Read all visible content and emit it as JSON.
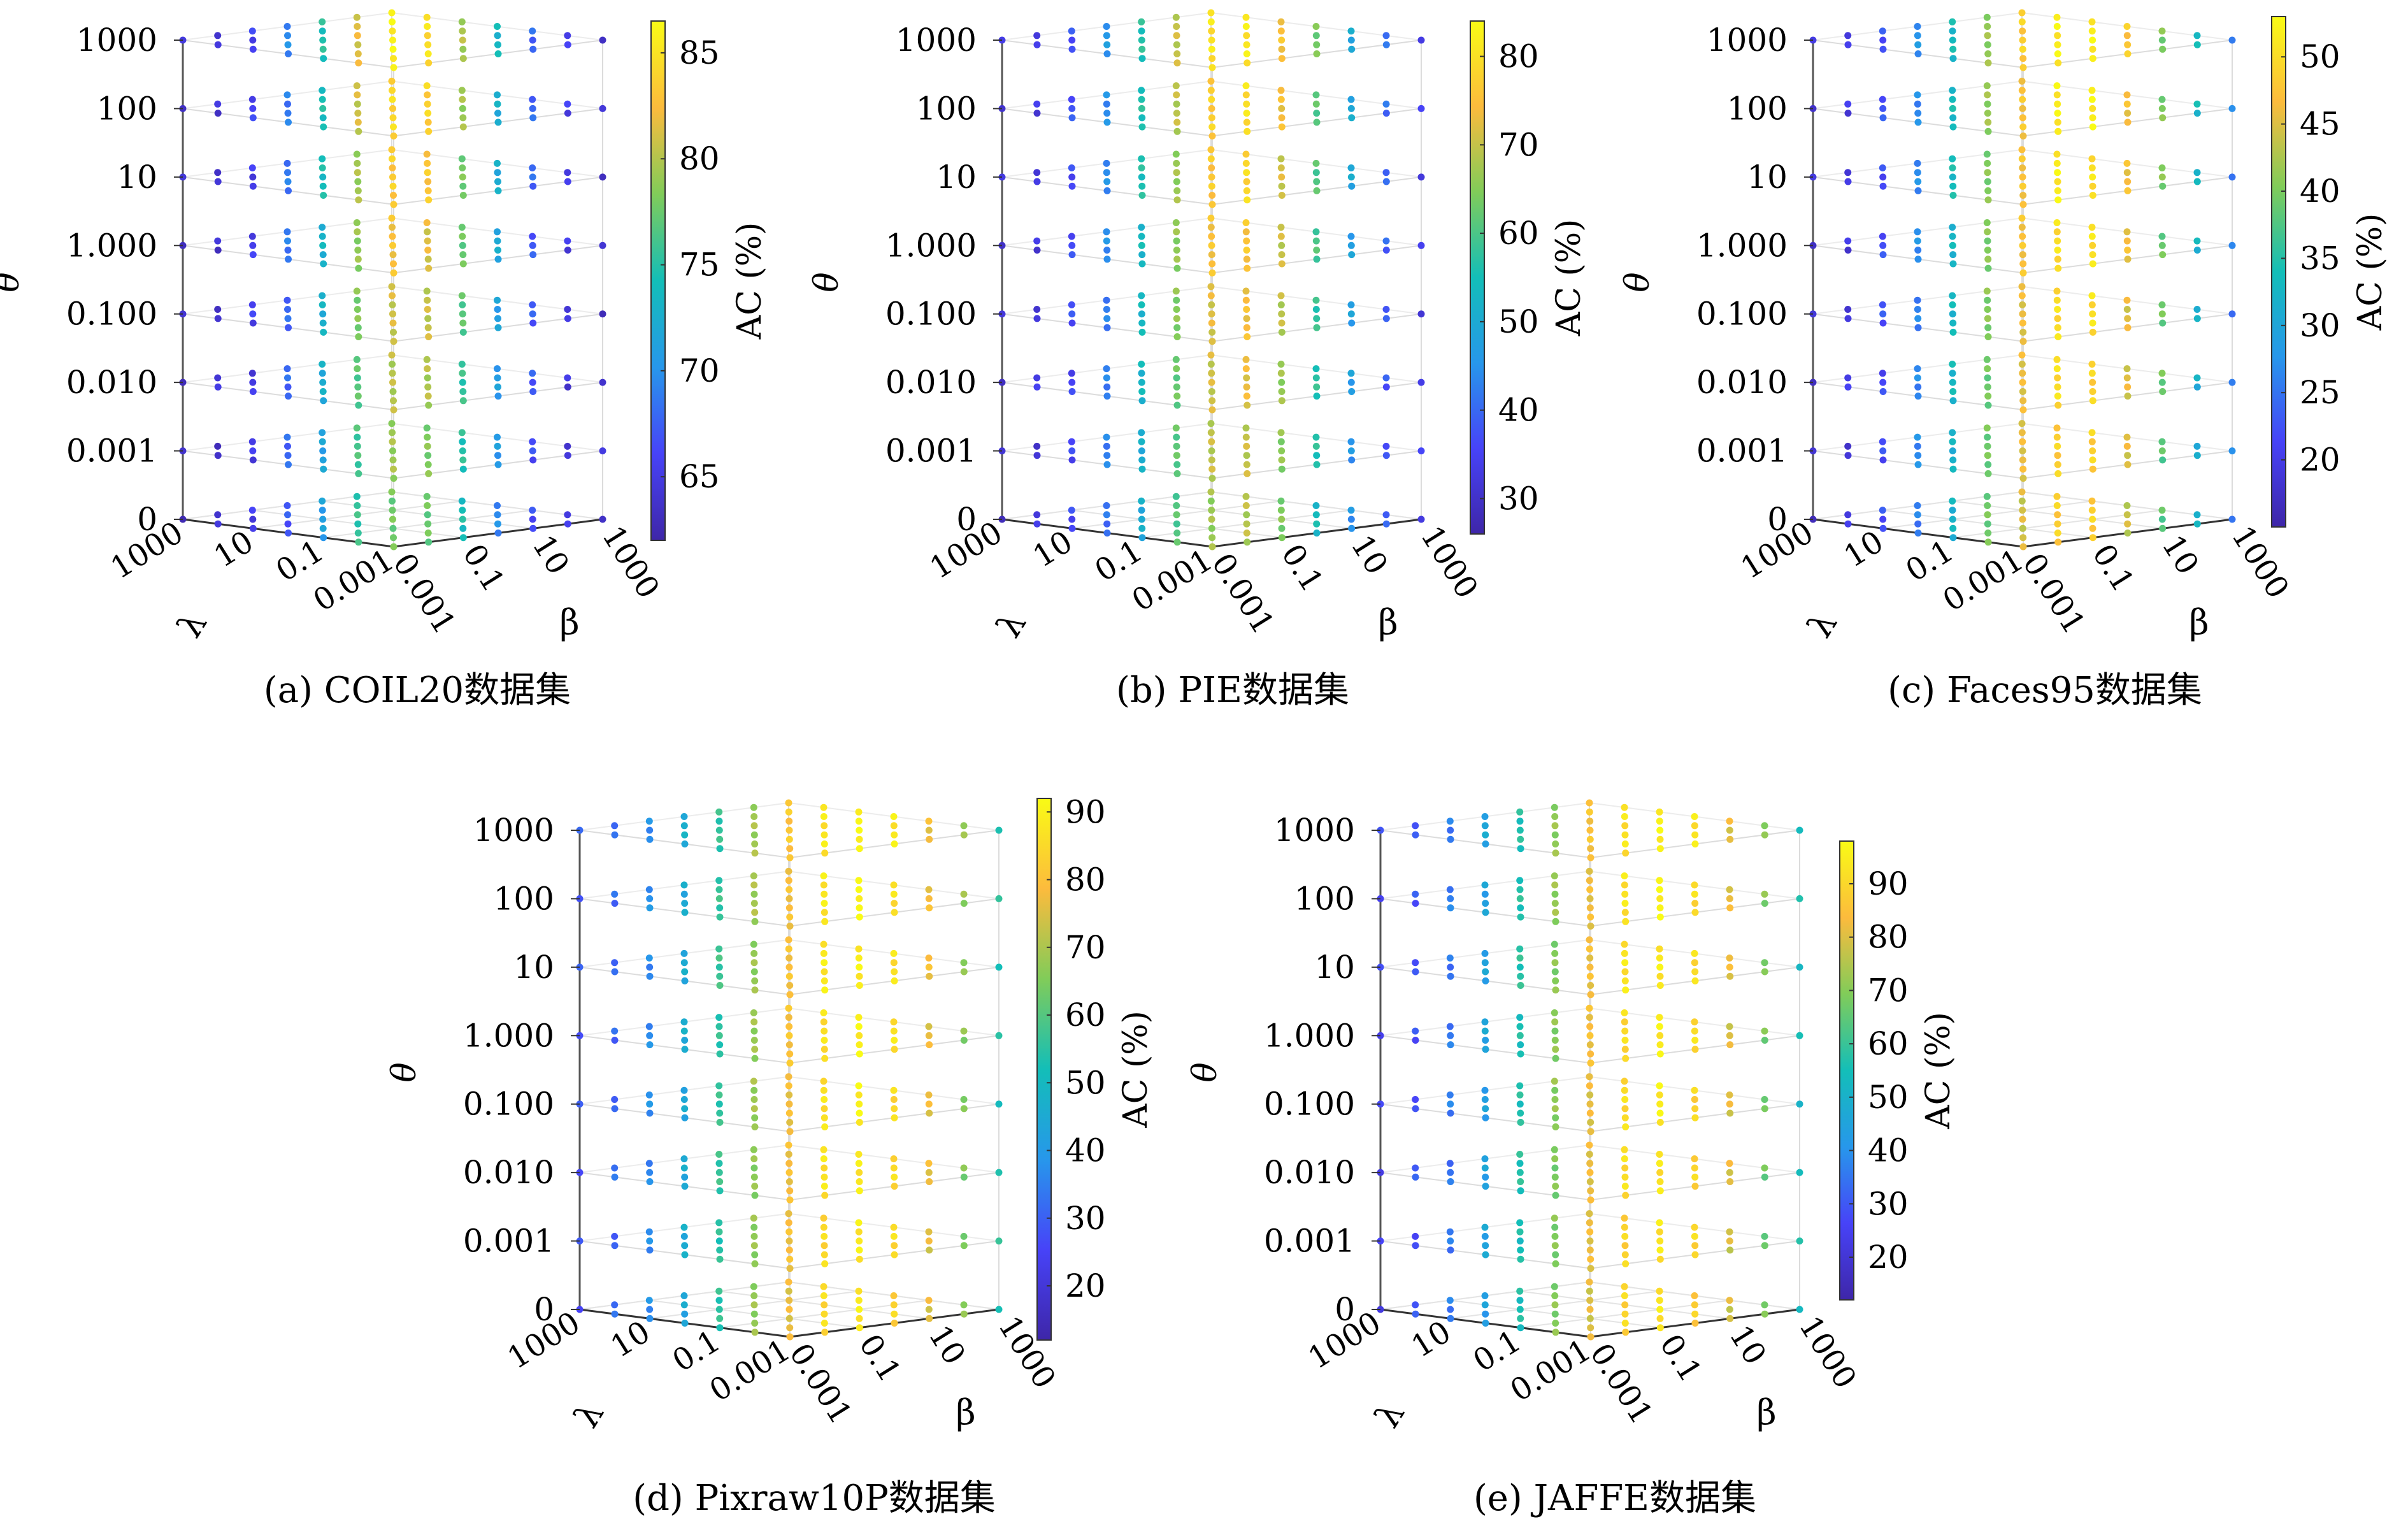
{
  "colormap": [
    "#3e26a8",
    "#4743f8",
    "#2797eb",
    "#13beb8",
    "#81cc59",
    "#fcbb3d",
    "#f9fb15"
  ],
  "chart_data": [
    {
      "type": "scatter3d",
      "caption": "(a) COIL20数据集",
      "zlabel": "θ",
      "xlabel": "λ",
      "ylabel": "β",
      "theta_ticks": [
        "0",
        "0.001",
        "0.010",
        "0.100",
        "1.000",
        "10",
        "100",
        "1000"
      ],
      "lambda_ticks": [
        "1000",
        "10",
        "0.1",
        "0.001"
      ],
      "beta_ticks": [
        "0.001",
        "0.1",
        "10",
        "1000"
      ],
      "colorbar": {
        "label": "AC (%)",
        "ticks": [
          65,
          70,
          75,
          80,
          85
        ],
        "min": 62,
        "max": 86.5
      },
      "profile": {
        "base": 63.5,
        "peak": 86,
        "center": 0.53,
        "width": 0.24,
        "thetaGain": 0.35
      }
    },
    {
      "type": "scatter3d",
      "caption": "(b) PIE数据集",
      "zlabel": "θ",
      "xlabel": "λ",
      "ylabel": "β",
      "theta_ticks": [
        "0",
        "0.001",
        "0.010",
        "0.100",
        "1.000",
        "10",
        "100",
        "1000"
      ],
      "lambda_ticks": [
        "1000",
        "10",
        "0.1",
        "0.001"
      ],
      "beta_ticks": [
        "0.001",
        "0.1",
        "10",
        "1000"
      ],
      "colorbar": {
        "label": "AC (%)",
        "ticks": [
          30,
          40,
          50,
          60,
          70,
          80
        ],
        "min": 26,
        "max": 84
      },
      "profile": {
        "base": 30,
        "peak": 82,
        "center": 0.56,
        "width": 0.28,
        "thetaGain": 0.25
      }
    },
    {
      "type": "scatter3d",
      "caption": "(c) Faces95数据集",
      "zlabel": "θ",
      "xlabel": "λ",
      "ylabel": "β",
      "theta_ticks": [
        "0",
        "0.001",
        "0.010",
        "0.100",
        "1.000",
        "10",
        "100",
        "1000"
      ],
      "lambda_ticks": [
        "1000",
        "10",
        "0.1",
        "0.001"
      ],
      "beta_ticks": [
        "0.001",
        "0.1",
        "10",
        "1000"
      ],
      "colorbar": {
        "label": "AC (%)",
        "ticks": [
          20,
          25,
          30,
          35,
          40,
          45,
          50
        ],
        "min": 15,
        "max": 53
      },
      "profile": {
        "base": 17,
        "peak": 52.5,
        "center": 0.62,
        "width": 0.33,
        "thetaGain": 0.1
      }
    },
    {
      "type": "scatter3d",
      "caption": "(d) Pixraw10P数据集",
      "zlabel": "θ",
      "xlabel": "λ",
      "ylabel": "β",
      "theta_ticks": [
        "0",
        "0.001",
        "0.010",
        "0.100",
        "1.000",
        "10",
        "100",
        "1000"
      ],
      "lambda_ticks": [
        "1000",
        "10",
        "0.1",
        "0.001"
      ],
      "beta_ticks": [
        "0.001",
        "0.1",
        "10",
        "1000"
      ],
      "colorbar": {
        "label": "AC (%)",
        "ticks": [
          20,
          30,
          40,
          50,
          60,
          70,
          80,
          90
        ],
        "min": 12,
        "max": 92
      },
      "profile": {
        "base": 25,
        "peak": 91,
        "center": 0.66,
        "width": 0.38,
        "thetaGain": 0.05
      }
    },
    {
      "type": "scatter3d",
      "caption": "(e) JAFFE数据集",
      "zlabel": "θ",
      "xlabel": "λ",
      "ylabel": "β",
      "theta_ticks": [
        "0",
        "0.001",
        "0.010",
        "0.100",
        "1.000",
        "10",
        "100",
        "1000"
      ],
      "lambda_ticks": [
        "1000",
        "10",
        "0.1",
        "0.001"
      ],
      "beta_ticks": [
        "0.001",
        "0.1",
        "10",
        "1000"
      ],
      "colorbar": {
        "label": "AC (%)",
        "ticks": [
          20,
          30,
          40,
          50,
          60,
          70,
          80,
          90
        ],
        "min": 12,
        "max": 98
      },
      "profile": {
        "base": 22,
        "peak": 96,
        "center": 0.66,
        "width": 0.38,
        "thetaGain": 0.05
      }
    }
  ]
}
